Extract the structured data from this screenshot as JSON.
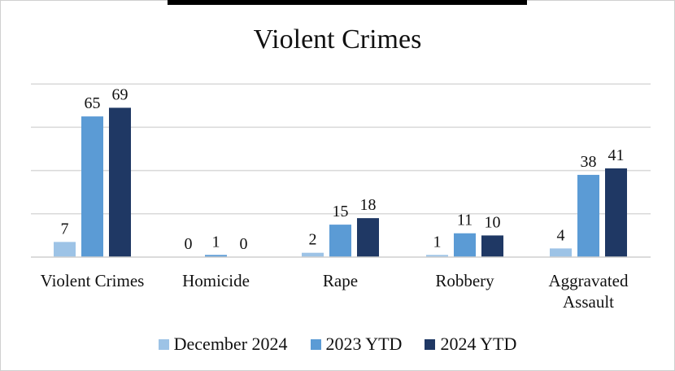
{
  "chart_data": {
    "type": "bar",
    "title": "Violent Crimes",
    "xlabel": "",
    "ylabel": "",
    "categories": [
      [
        "Violent Crimes"
      ],
      [
        "Homicide"
      ],
      [
        "Rape"
      ],
      [
        "Robbery"
      ],
      [
        "Aggravated",
        "Assault"
      ]
    ],
    "series": [
      {
        "name": "December 2024",
        "values": [
          7,
          0,
          2,
          1,
          4
        ],
        "color": "#9dc3e6"
      },
      {
        "name": "2023 YTD",
        "values": [
          65,
          1,
          15,
          11,
          38
        ],
        "color": "#5b9bd5"
      },
      {
        "name": "2024 YTD",
        "values": [
          69,
          0,
          18,
          10,
          41
        ],
        "color": "#1f3864"
      }
    ],
    "ylim": [
      0,
      80
    ],
    "grid": true,
    "legend_position": "bottom"
  }
}
